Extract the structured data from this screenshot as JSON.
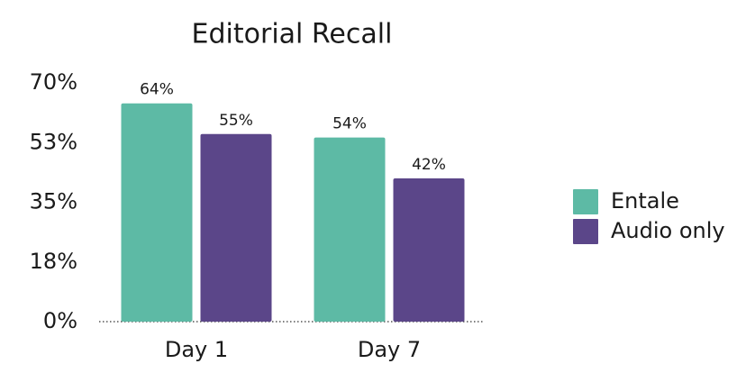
{
  "chart_data": {
    "type": "bar",
    "title": "Editorial Recall",
    "categories": [
      "Day 1",
      "Day 7"
    ],
    "series": [
      {
        "name": "Entale",
        "color": "#5dbaa5",
        "values": [
          64,
          54
        ],
        "value_labels": [
          "64%",
          "54%"
        ]
      },
      {
        "name": "Audio only",
        "color": "#5b4689",
        "values": [
          55,
          42
        ],
        "value_labels": [
          "55%",
          "42%"
        ]
      }
    ],
    "ylim": [
      0,
      70
    ],
    "yticks": [
      {
        "value": 0,
        "label": "0%"
      },
      {
        "value": 17.5,
        "label": "18%"
      },
      {
        "value": 35,
        "label": "35%"
      },
      {
        "value": 52.5,
        "label": "53%"
      },
      {
        "value": 70,
        "label": "70%"
      }
    ],
    "legend": "right"
  }
}
